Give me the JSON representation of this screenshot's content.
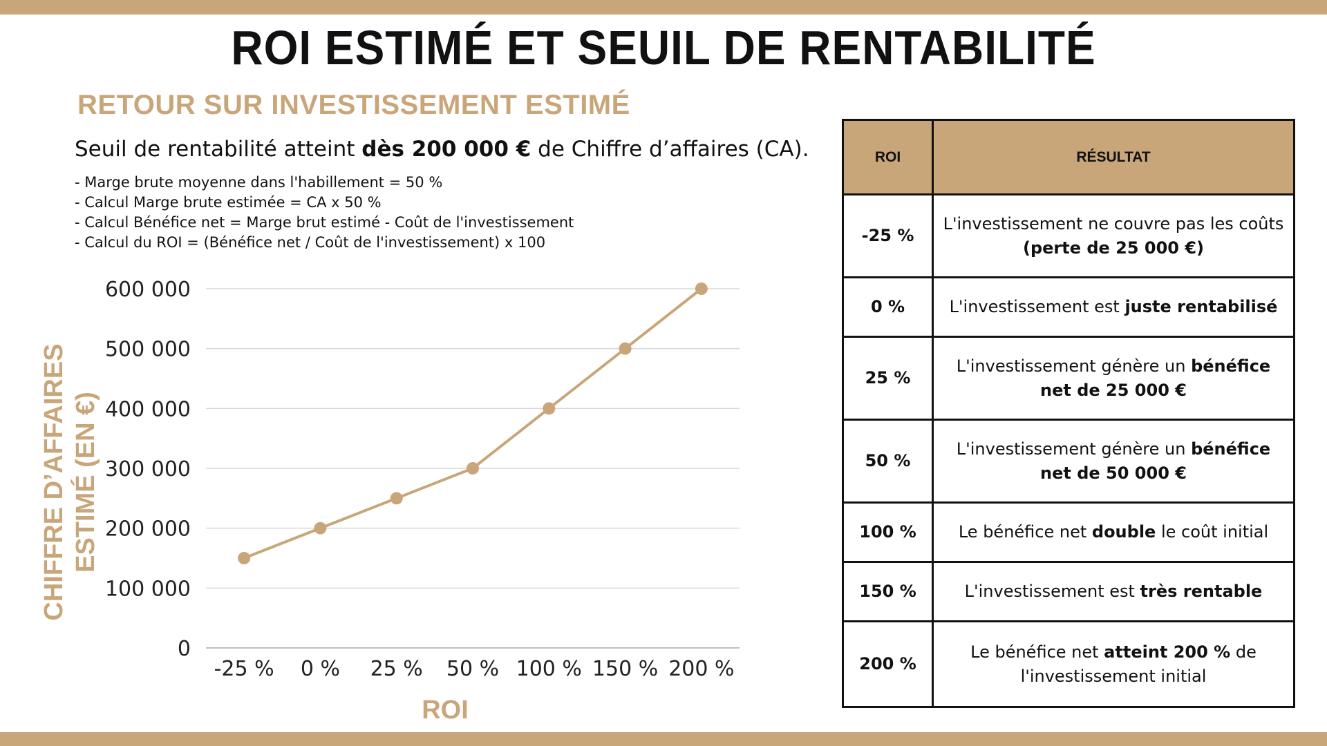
{
  "page": {
    "title": "ROI ESTIMÉ ET SEUIL DE RENTABILITÉ",
    "subtitle": "RETOUR SUR INVESTISSEMENT ESTIMÉ",
    "lead_prefix": "Seuil de rentabilité atteint ",
    "lead_bold": "dès 200 000 €",
    "lead_suffix": " de Chiffre d’affaires (CA).",
    "notes": [
      "- Marge brute moyenne dans l'habillement = 50 %",
      "- Calcul Marge brute estimée = CA x 50 %",
      "- Calcul Bénéfice net = Marge brut estimé - Coût de l'investissement",
      "- Calcul du ROI = (Bénéfice net / Coût de l'investissement) x 100"
    ]
  },
  "colors": {
    "accent": "#c9a679",
    "grid": "#d9d9d9",
    "text": "#111111"
  },
  "chart_data": {
    "type": "line",
    "xlabel": "ROI",
    "ylabel": "CHIFFRE D’AFFAIRES ESTIMÉ (EN €)",
    "categories": [
      "-25 %",
      "0 %",
      "25 %",
      "50 %",
      "100 %",
      "150 %",
      "200 %"
    ],
    "values": [
      150000,
      200000,
      250000,
      300000,
      400000,
      500000,
      600000
    ],
    "ylim": [
      0,
      600000
    ],
    "yticks": [
      0,
      100000,
      200000,
      300000,
      400000,
      500000,
      600000
    ],
    "ytick_labels": [
      "0",
      "100 000",
      "200 000",
      "300 000",
      "400 000",
      "500 000",
      "600 000"
    ],
    "grid": true,
    "legend": "none"
  },
  "table": {
    "headers": [
      "ROI",
      "RÉSULTAT"
    ],
    "rows": [
      {
        "roi": "-25 %",
        "parts": [
          [
            "L'investissement ne couvre pas les coûts",
            false
          ],
          [
            "(perte de 25 000 €)",
            true
          ]
        ],
        "layout": "two-line"
      },
      {
        "roi": "0 %",
        "parts": [
          [
            "L'investissement est ",
            false
          ],
          [
            "juste rentabilisé",
            true
          ]
        ]
      },
      {
        "roi": "25 %",
        "parts": [
          [
            "L'investissement génère un ",
            false
          ],
          [
            "bénéfice net de 25 000 €",
            true
          ]
        ]
      },
      {
        "roi": "50 %",
        "parts": [
          [
            "L'investissement génère un ",
            false
          ],
          [
            "bénéfice net de 50 000 €",
            true
          ]
        ]
      },
      {
        "roi": "100 %",
        "parts": [
          [
            "Le bénéfice net ",
            false
          ],
          [
            "double",
            true
          ],
          [
            " le coût initial",
            false
          ]
        ]
      },
      {
        "roi": "150 %",
        "parts": [
          [
            "L'investissement est ",
            false
          ],
          [
            "très rentable",
            true
          ]
        ]
      },
      {
        "roi": "200 %",
        "parts": [
          [
            "Le bénéfice net ",
            false
          ],
          [
            "atteint 200 %",
            true
          ],
          [
            " de l'investissement initial",
            false
          ]
        ]
      }
    ]
  }
}
